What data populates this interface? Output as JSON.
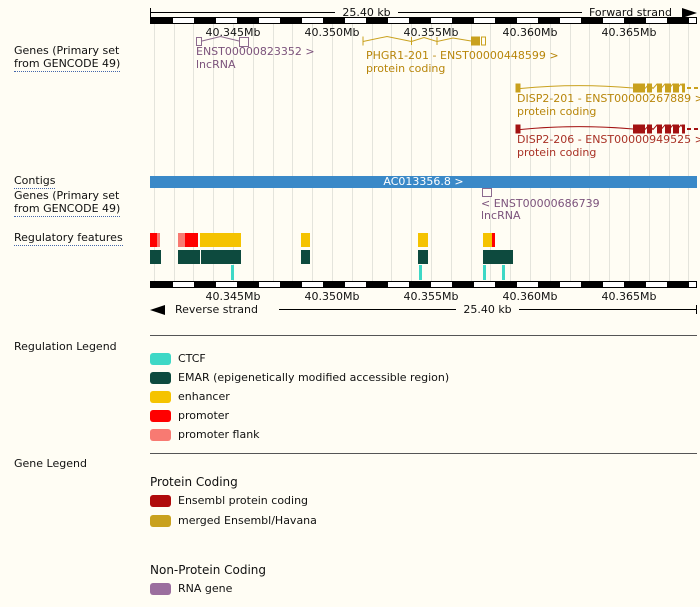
{
  "colors": {
    "bg": "#FFFDF4",
    "grid": "#E4E4DC",
    "ruler": "#000000",
    "contig_blue": "#3A89C8",
    "gold": "#C9A11E",
    "gold_text": "#B8860B",
    "dark_red": "#A31212",
    "dark_red_text": "#A93226",
    "purple": "#8C6A8E",
    "purple_text": "#7C537C",
    "ctcf": "#3ED8C6",
    "emar": "#0D4A3E",
    "enhancer": "#F5C300",
    "promoter": "#FF0000",
    "promoter_flank": "#F87A72",
    "protein_coding_red": "#B00B0B",
    "merged_gold": "#C9A11E",
    "rna_gene_purple": "#9B6E9E",
    "divider": "#555555",
    "underline": "#4466AA"
  },
  "top_ruler": {
    "scale_label": "25.40 kb",
    "strand_label": "Forward strand"
  },
  "bottom_ruler": {
    "scale_label": "25.40 kb",
    "strand_label": "Reverse strand"
  },
  "ticks": [
    "40.345Mb",
    "40.350Mb",
    "40.355Mb",
    "40.360Mb",
    "40.365Mb"
  ],
  "track_labels": {
    "genes_forward_line1": "Genes (Primary set",
    "genes_forward_line2": "from GENCODE 49)",
    "contigs": "Contigs",
    "genes_reverse_line1": "Genes (Primary set",
    "genes_reverse_line2": "from GENCODE 49)",
    "regulatory": "Regulatory features"
  },
  "contig": {
    "name": "AC013356.8 >"
  },
  "genes": {
    "forward": [
      {
        "id": "ENST00000823352 >",
        "biotype": "lncRNA"
      },
      {
        "id": "PHGR1-201 - ENST00000448599 >",
        "biotype": "protein coding"
      },
      {
        "id": "DISP2-201 - ENST00000267889 >",
        "biotype": "protein coding"
      },
      {
        "id": "DISP2-206 - ENST00000949525 >",
        "biotype": "protein coding"
      }
    ],
    "reverse": [
      {
        "id": "< ENST00000686739",
        "biotype": "lncRNA"
      }
    ]
  },
  "regulation_legend": {
    "title": "Regulation Legend",
    "items": [
      {
        "label": "CTCF"
      },
      {
        "label": "EMAR (epigenetically modified accessible region)"
      },
      {
        "label": "enhancer"
      },
      {
        "label": "promoter"
      },
      {
        "label": "promoter flank"
      }
    ]
  },
  "gene_legend": {
    "title": "Gene Legend",
    "sections": [
      {
        "heading": "Protein Coding",
        "items": [
          {
            "label": "Ensembl protein coding"
          },
          {
            "label": "merged Ensembl/Havana"
          }
        ]
      },
      {
        "heading": "Non-Protein Coding",
        "items": [
          {
            "label": "RNA gene"
          }
        ]
      }
    ]
  }
}
